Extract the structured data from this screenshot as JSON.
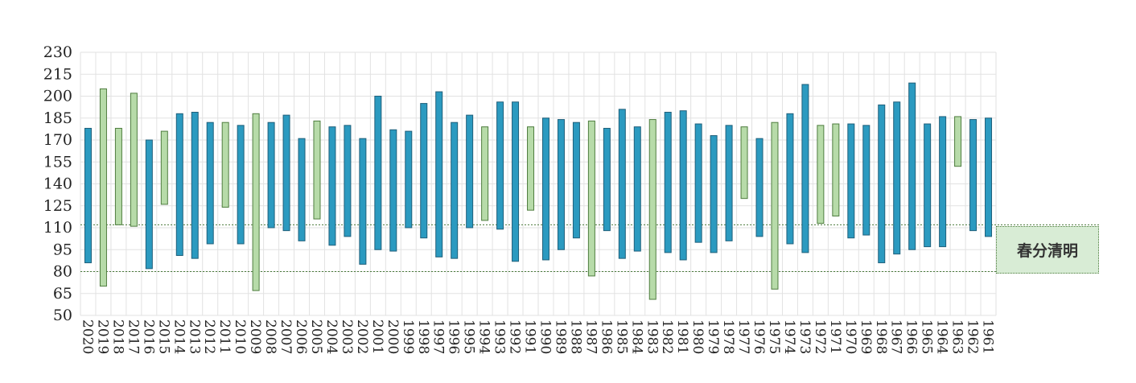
{
  "chart_data": {
    "type": "floating-bar",
    "title": "",
    "xlabel": "",
    "ylabel": "",
    "ylim": [
      50,
      230
    ],
    "yticks": [
      50,
      65,
      80,
      95,
      110,
      125,
      140,
      155,
      170,
      185,
      200,
      215,
      230
    ],
    "grid": true,
    "categories": [
      "2020",
      "2019",
      "2018",
      "2017",
      "2016",
      "2015",
      "2014",
      "2013",
      "2012",
      "2011",
      "2010",
      "2009",
      "2008",
      "2007",
      "2006",
      "2005",
      "2004",
      "2003",
      "2002",
      "2001",
      "2000",
      "1999",
      "1998",
      "1997",
      "1996",
      "1995",
      "1994",
      "1993",
      "1992",
      "1991",
      "1990",
      "1989",
      "1988",
      "1987",
      "1986",
      "1985",
      "1984",
      "1983",
      "1982",
      "1981",
      "1980",
      "1979",
      "1978",
      "1977",
      "1976",
      "1975",
      "1974",
      "1973",
      "1972",
      "1971",
      "1970",
      "1969",
      "1968",
      "1967",
      "1966",
      "1965",
      "1964",
      "1963",
      "1962",
      "1961"
    ],
    "bars": [
      {
        "low": 86,
        "high": 178,
        "color": "blue"
      },
      {
        "low": 70,
        "high": 205,
        "color": "green"
      },
      {
        "low": 112,
        "high": 178,
        "color": "green"
      },
      {
        "low": 111,
        "high": 202,
        "color": "green"
      },
      {
        "low": 82,
        "high": 170,
        "color": "blue"
      },
      {
        "low": 126,
        "high": 176,
        "color": "green"
      },
      {
        "low": 91,
        "high": 188,
        "color": "blue"
      },
      {
        "low": 89,
        "high": 189,
        "color": "blue"
      },
      {
        "low": 99,
        "high": 182,
        "color": "blue"
      },
      {
        "low": 124,
        "high": 182,
        "color": "green"
      },
      {
        "low": 99,
        "high": 180,
        "color": "blue"
      },
      {
        "low": 67,
        "high": 188,
        "color": "green"
      },
      {
        "low": 110,
        "high": 182,
        "color": "blue"
      },
      {
        "low": 108,
        "high": 187,
        "color": "blue"
      },
      {
        "low": 101,
        "high": 171,
        "color": "blue"
      },
      {
        "low": 116,
        "high": 183,
        "color": "green"
      },
      {
        "low": 98,
        "high": 179,
        "color": "blue"
      },
      {
        "low": 104,
        "high": 180,
        "color": "blue"
      },
      {
        "low": 85,
        "high": 171,
        "color": "blue"
      },
      {
        "low": 95,
        "high": 200,
        "color": "blue"
      },
      {
        "low": 94,
        "high": 177,
        "color": "blue"
      },
      {
        "low": 110,
        "high": 176,
        "color": "blue"
      },
      {
        "low": 103,
        "high": 195,
        "color": "blue"
      },
      {
        "low": 90,
        "high": 203,
        "color": "blue"
      },
      {
        "low": 89,
        "high": 182,
        "color": "blue"
      },
      {
        "low": 110,
        "high": 187,
        "color": "blue"
      },
      {
        "low": 115,
        "high": 179,
        "color": "green"
      },
      {
        "low": 109,
        "high": 196,
        "color": "blue"
      },
      {
        "low": 87,
        "high": 196,
        "color": "blue"
      },
      {
        "low": 122,
        "high": 179,
        "color": "green"
      },
      {
        "low": 88,
        "high": 185,
        "color": "blue"
      },
      {
        "low": 95,
        "high": 184,
        "color": "blue"
      },
      {
        "low": 103,
        "high": 182,
        "color": "blue"
      },
      {
        "low": 77,
        "high": 183,
        "color": "green"
      },
      {
        "low": 108,
        "high": 178,
        "color": "blue"
      },
      {
        "low": 89,
        "high": 191,
        "color": "blue"
      },
      {
        "low": 94,
        "high": 179,
        "color": "blue"
      },
      {
        "low": 61,
        "high": 184,
        "color": "green"
      },
      {
        "low": 93,
        "high": 189,
        "color": "blue"
      },
      {
        "low": 88,
        "high": 190,
        "color": "blue"
      },
      {
        "low": 100,
        "high": 181,
        "color": "blue"
      },
      {
        "low": 93,
        "high": 173,
        "color": "blue"
      },
      {
        "low": 101,
        "high": 180,
        "color": "blue"
      },
      {
        "low": 130,
        "high": 179,
        "color": "green"
      },
      {
        "low": 104,
        "high": 171,
        "color": "blue"
      },
      {
        "low": 68,
        "high": 182,
        "color": "green"
      },
      {
        "low": 99,
        "high": 188,
        "color": "blue"
      },
      {
        "low": 93,
        "high": 208,
        "color": "blue"
      },
      {
        "low": 113,
        "high": 180,
        "color": "green"
      },
      {
        "low": 118,
        "high": 181,
        "color": "green"
      },
      {
        "low": 103,
        "high": 181,
        "color": "blue"
      },
      {
        "low": 105,
        "high": 180,
        "color": "blue"
      },
      {
        "low": 86,
        "high": 194,
        "color": "blue"
      },
      {
        "low": 92,
        "high": 196,
        "color": "blue"
      },
      {
        "low": 95,
        "high": 209,
        "color": "blue"
      },
      {
        "low": 97,
        "high": 181,
        "color": "blue"
      },
      {
        "low": 97,
        "high": 186,
        "color": "blue"
      },
      {
        "low": 152,
        "high": 186,
        "color": "green"
      },
      {
        "low": 108,
        "high": 184,
        "color": "blue"
      },
      {
        "low": 104,
        "high": 185,
        "color": "blue"
      }
    ],
    "band": {
      "low": 80,
      "high": 112,
      "label": "春分清明"
    },
    "colors": {
      "blue_fill": "#2b9ac0",
      "blue_stroke": "#1f5f7a",
      "green_fill": "#b7dba9",
      "green_stroke": "#4f7d3f",
      "band_fill": "#d8ecd5"
    }
  }
}
